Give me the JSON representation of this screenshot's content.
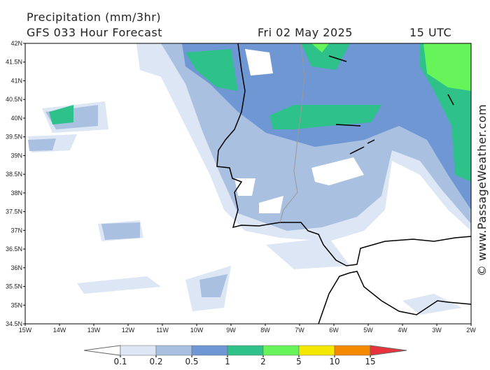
{
  "header": {
    "title": "Precipitation (mm/3hr)",
    "model": "GFS 033 Hour Forecast",
    "date": "Fri 02 May 2025",
    "time": "15 UTC"
  },
  "lat_labels": [
    "42N",
    "41.5N",
    "41N",
    "40.5N",
    "40N",
    "39.5N",
    "39N",
    "38.5N",
    "38N",
    "37.5N",
    "37N",
    "36.5N",
    "36N",
    "35.5N",
    "35N",
    "34.5N"
  ],
  "lon_labels": [
    "15W",
    "14W",
    "13W",
    "12W",
    "11W",
    "10W",
    "9W",
    "8W",
    "7W",
    "6W",
    "5W",
    "4W",
    "3W",
    "2W"
  ],
  "colorbar": {
    "labels": [
      "0.1",
      "0.2",
      "0.5",
      "1",
      "2",
      "5",
      "10",
      "15"
    ],
    "colors": [
      "#dde6f4",
      "#a9c0e0",
      "#6e97d4",
      "#2ec28a",
      "#66f45a",
      "#f5e800",
      "#f58a00"
    ],
    "under_color": "#ffffff",
    "over_color": "#e8323c"
  },
  "watermark": "© www.PassageWeather.com"
}
